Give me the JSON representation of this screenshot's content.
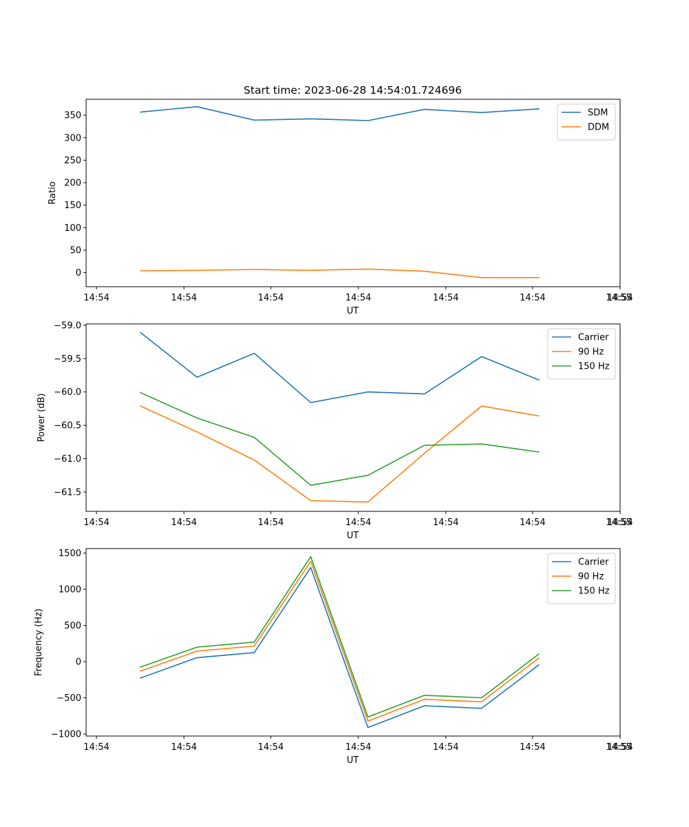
{
  "figure": {
    "title": "Start time: 2023-06-28 14:54:01.724696"
  },
  "colors": {
    "blue": "#1f77b4",
    "orange": "#ff7f0e",
    "green": "#2ca02c",
    "axis": "#000000",
    "legend_border": "#cccccc"
  },
  "chart_data": [
    {
      "type": "line",
      "name": "ratio",
      "xlabel": "UT",
      "ylabel": "Ratio",
      "x_tick_labels": [
        "14:54",
        "14:54",
        "14:54",
        "14:54",
        "14:54",
        "14:54",
        "14:54",
        "14:55"
      ],
      "y_ticks": [
        0,
        50,
        100,
        150,
        200,
        250,
        300,
        350
      ],
      "ylim": [
        -31.3,
        385.5
      ],
      "legend": "top-right",
      "grid": false,
      "series": [
        {
          "name": "SDM",
          "color": "#1f77b4",
          "values": [
            357,
            369,
            339,
            342,
            338,
            363,
            356,
            364
          ]
        },
        {
          "name": "DDM",
          "color": "#ff7f0e",
          "values": [
            4,
            5,
            7,
            5,
            8,
            3,
            -11,
            -11
          ]
        }
      ]
    },
    {
      "type": "line",
      "name": "power",
      "xlabel": "UT",
      "ylabel": "Power (dB)",
      "x_tick_labels": [
        "14:54",
        "14:54",
        "14:54",
        "14:54",
        "14:54",
        "14:54",
        "14:54",
        "14:55"
      ],
      "y_ticks": [
        -61.5,
        -61.0,
        -60.5,
        -60.0,
        -59.5,
        -59.0
      ],
      "y_tick_labels": [
        "−61.5",
        "−61.0",
        "−60.5",
        "−60.0",
        "−59.5",
        "−59.0"
      ],
      "ylim": [
        -61.79,
        -58.98
      ],
      "legend": "top-right",
      "grid": false,
      "series": [
        {
          "name": "Carrier",
          "color": "#1f77b4",
          "values": [
            -59.11,
            -59.78,
            -59.42,
            -60.16,
            -60.0,
            -60.03,
            -59.47,
            -59.82
          ]
        },
        {
          "name": "90 Hz",
          "color": "#ff7f0e",
          "values": [
            -60.21,
            -60.6,
            -61.02,
            -61.63,
            -61.65,
            -60.92,
            -60.21,
            -60.36
          ]
        },
        {
          "name": "150 Hz",
          "color": "#2ca02c",
          "values": [
            -60.01,
            -60.39,
            -60.68,
            -61.4,
            -61.25,
            -60.8,
            -60.78,
            -60.9
          ]
        }
      ]
    },
    {
      "type": "line",
      "name": "frequency",
      "xlabel": "UT",
      "ylabel": "Frequency (Hz)",
      "x_tick_labels": [
        "14:54",
        "14:54",
        "14:54",
        "14:54",
        "14:54",
        "14:54",
        "14:54",
        "14:55"
      ],
      "y_ticks": [
        -1000,
        -500,
        0,
        500,
        1000,
        1500
      ],
      "y_tick_labels": [
        "−1000",
        "−500",
        "0",
        "500",
        "1000",
        "1500"
      ],
      "ylim": [
        -1028,
        1562
      ],
      "legend": "top-right",
      "grid": false,
      "series": [
        {
          "name": "Carrier",
          "color": "#1f77b4",
          "values": [
            -225,
            55,
            125,
            1300,
            -910,
            -610,
            -645,
            -45
          ]
        },
        {
          "name": "90 Hz",
          "color": "#ff7f0e",
          "values": [
            -130,
            145,
            215,
            1385,
            -820,
            -520,
            -555,
            50
          ]
        },
        {
          "name": "150 Hz",
          "color": "#2ca02c",
          "values": [
            -75,
            200,
            270,
            1450,
            -765,
            -465,
            -500,
            105
          ]
        }
      ]
    }
  ]
}
